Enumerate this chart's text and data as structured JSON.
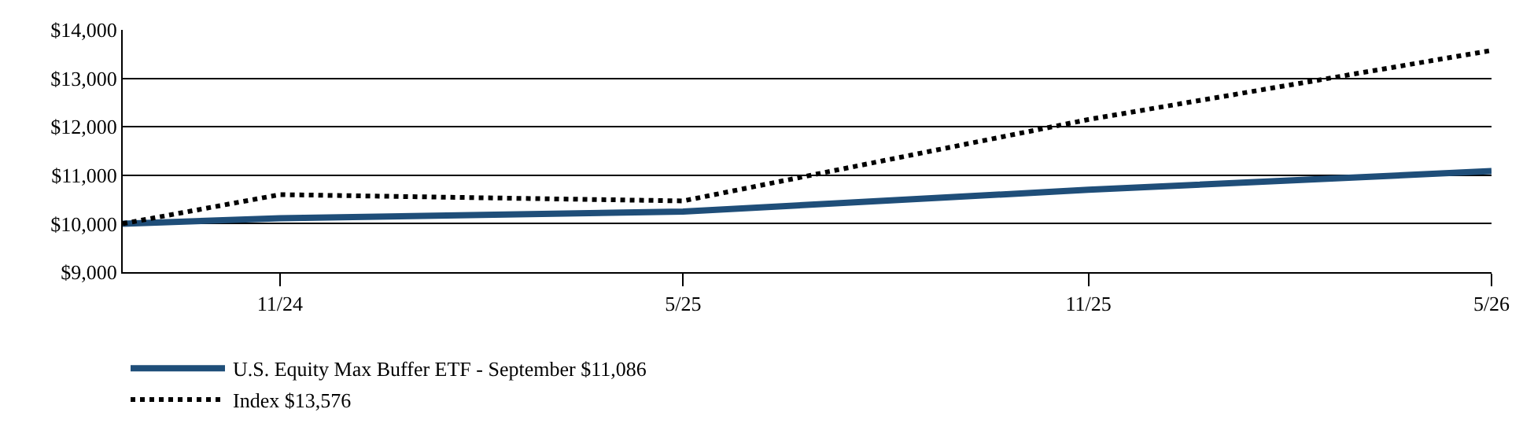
{
  "chart_data": {
    "type": "line",
    "x": [
      "2024-09-20",
      "2024-11-30",
      "2025-05-31",
      "2025-11-30",
      "2026-05-31"
    ],
    "series": [
      {
        "name": "U.S. Equity Max Buffer ETF - September $11,086",
        "color": "#1f4e79",
        "values": [
          10000,
          10110,
          10250,
          10700,
          11086
        ],
        "line_style": "solid"
      },
      {
        "name": "Index $13,576",
        "color": "#000000",
        "values": [
          10000,
          10600,
          10470,
          12150,
          13576
        ],
        "line_style": "dotted"
      }
    ],
    "xlim": [
      "2024-09-20",
      "2026-05-31"
    ],
    "xticks": [
      {
        "value": "2024-11-30",
        "label": "11/24"
      },
      {
        "value": "2025-05-31",
        "label": "5/25"
      },
      {
        "value": "2025-11-30",
        "label": "11/25"
      },
      {
        "value": "2026-05-31",
        "label": "5/26"
      }
    ],
    "ylim": [
      9000,
      14000
    ],
    "yticks": [
      {
        "value": 9000,
        "label": "$9,000"
      },
      {
        "value": 10000,
        "label": "$10,000"
      },
      {
        "value": 11000,
        "label": "$11,000"
      },
      {
        "value": 12000,
        "label": "$12,000"
      },
      {
        "value": 13000,
        "label": "$13,000"
      },
      {
        "value": 14000,
        "label": "$14,000"
      }
    ],
    "grid": "y",
    "legend": "bottom",
    "marker": "none"
  }
}
